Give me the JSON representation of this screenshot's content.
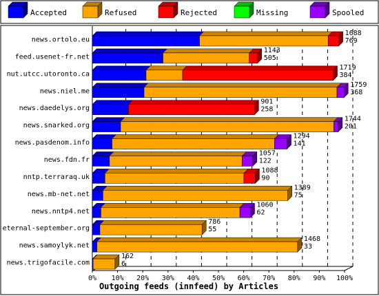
{
  "chart_data": {
    "type": "bar",
    "orientation": "horizontal",
    "stacked": true,
    "normalized_percent": true,
    "xlabel": "Outgoing feeds (innfeed) by Articles",
    "x_ticks": [
      "0%",
      "10%",
      "20%",
      "30%",
      "40%",
      "50%",
      "60%",
      "70%",
      "80%",
      "90%",
      "100%"
    ],
    "xlim": [
      0,
      100
    ],
    "legend_position": "top",
    "grid": "vertical-dashed",
    "legend": [
      {
        "key": "accepted",
        "label": "Accepted",
        "color": "#0000ff"
      },
      {
        "key": "refused",
        "label": "Refused",
        "color": "#ffa500"
      },
      {
        "key": "rejected",
        "label": "Rejected",
        "color": "#ff0000"
      },
      {
        "key": "missing",
        "label": "Missing",
        "color": "#00ff00"
      },
      {
        "key": "spooled",
        "label": "Spooled",
        "color": "#9900ff"
      }
    ],
    "categories": [
      "news.ortolo.eu",
      "feed.usenet-fr.net",
      "nut.utcc.utoronto.ca",
      "news.niel.me",
      "news.daedelys.org",
      "news.snarked.org",
      "news.pasdenom.info",
      "news.fdn.fr",
      "nntp.terraraq.uk",
      "news.mb-net.net",
      "news.nntp4.net",
      "eternal-september.org",
      "news.samoylyk.net",
      "news.trigofacile.com"
    ],
    "offered": [
      "1688",
      "1143",
      "1719",
      "1759",
      "901",
      "1744",
      "1294",
      "1057",
      "1088",
      "1389",
      "1060",
      "786",
      "1468",
      "162"
    ],
    "accepted": [
      "769",
      "505",
      "384",
      "368",
      "258",
      "201",
      "141",
      "122",
      "90",
      "75",
      "62",
      "55",
      "33",
      "6"
    ],
    "percent": {
      "accepted": [
        42.5,
        28.0,
        21.3,
        20.5,
        14.3,
        11.2,
        7.8,
        6.8,
        5.0,
        4.2,
        3.4,
        3.0,
        1.8,
        0.3
      ],
      "refused": [
        51.0,
        34.2,
        14.5,
        76.5,
        0,
        84.5,
        64.4,
        52.6,
        55.1,
        73.3,
        55.1,
        40.5,
        79.6,
        8.7
      ],
      "rejected": [
        4.2,
        3.3,
        59.7,
        0,
        50.0,
        0,
        0,
        0,
        4.5,
        0,
        0,
        0,
        0,
        0
      ],
      "missing": [
        0,
        0,
        0,
        0,
        0,
        0,
        0,
        0,
        0,
        0,
        0,
        0,
        0,
        0
      ],
      "spooled": [
        0,
        0,
        0,
        2.8,
        0,
        1.8,
        5.0,
        4.2,
        0,
        0,
        4.2,
        0,
        0,
        0
      ]
    }
  }
}
